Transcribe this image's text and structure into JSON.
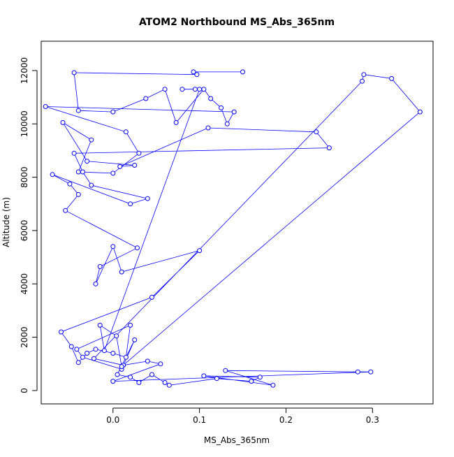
{
  "chart_data": {
    "type": "line",
    "title": "ATOM2 Northbound MS_Abs_365nm",
    "xlabel": "MS_Abs_365nm",
    "ylabel": "Altitude (m)",
    "xlim": [
      -0.083,
      0.37
    ],
    "ylim": [
      -500,
      13100
    ],
    "xticks": [
      0.0,
      0.1,
      0.2,
      0.3
    ],
    "xtick_labels": [
      "0.0",
      "0.1",
      "0.2",
      "0.3"
    ],
    "yticks": [
      0,
      2000,
      4000,
      6000,
      8000,
      10000,
      12000
    ],
    "ytick_labels": [
      "0",
      "2000",
      "4000",
      "6000",
      "8000",
      "10000",
      "12000"
    ],
    "grid": false,
    "series_color": "#0000ff",
    "markers": "open-circle",
    "x": [
      0.15,
      0.093,
      0.097,
      -0.045,
      -0.04,
      0.0,
      0.038,
      0.06,
      0.073,
      0.105,
      0.113,
      0.125,
      0.132,
      0.14,
      -0.078,
      0.015,
      0.03,
      0.0,
      -0.04,
      -0.025,
      -0.058,
      -0.03,
      0.025,
      0.008,
      0.11,
      0.235,
      0.25,
      -0.045,
      -0.035,
      -0.025,
      0.04,
      0.02,
      -0.07,
      -0.05,
      -0.04,
      -0.055,
      0.028,
      -0.015,
      -0.02,
      0.0,
      0.01,
      0.1,
      0.045,
      -0.06,
      -0.048,
      -0.04,
      -0.03,
      -0.02,
      0.0,
      0.015,
      0.02,
      -0.042,
      -0.035,
      0.01,
      0.025,
      0.005,
      0.02,
      0.03,
      0.045,
      0.06,
      0.065,
      0.12,
      0.16,
      0.17,
      0.105,
      0.185,
      0.13,
      0.283,
      0.298,
      0.0,
      0.055,
      0.04,
      0.012,
      -0.022,
      0.288,
      0.29,
      0.322,
      0.355,
      0.01,
      0.004,
      -0.015,
      -0.01,
      0.1,
      0.095,
      0.08
    ],
    "y": [
      11950,
      11950,
      11850,
      11920,
      10500,
      10450,
      10950,
      11300,
      10050,
      11300,
      10950,
      10600,
      10000,
      10450,
      10650,
      9700,
      8900,
      8150,
      8200,
      9400,
      10050,
      8600,
      8450,
      8400,
      9850,
      9700,
      9100,
      8900,
      8200,
      7700,
      7200,
      7000,
      8100,
      7750,
      7350,
      6750,
      5350,
      4650,
      4000,
      5400,
      4450,
      5250,
      3500,
      2200,
      1650,
      1050,
      1400,
      1550,
      1400,
      1250,
      2450,
      1550,
      1250,
      800,
      1900,
      600,
      500,
      300,
      600,
      300,
      200,
      450,
      350,
      500,
      550,
      200,
      750,
      700,
      700,
      350,
      1000,
      1100,
      950,
      1200,
      11600,
      11850,
      11700,
      10450,
      900,
      2050,
      2450,
      1500,
      11300,
      11300,
      11300
    ]
  }
}
